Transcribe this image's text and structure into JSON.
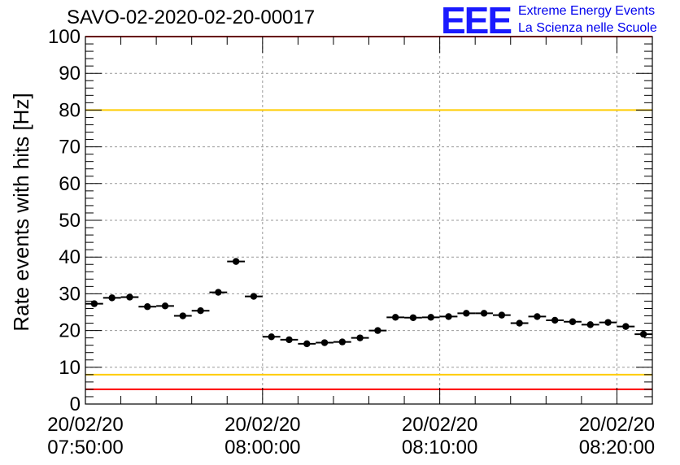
{
  "title": "SAVO-02-2020-02-20-00017",
  "logo": {
    "mark": "EEE",
    "line1": "Extreme Energy Events",
    "line2": "La Scienza nelle Scuole"
  },
  "chart_data": {
    "type": "scatter",
    "ylabel": "Rate events with hits [Hz]",
    "xlabel": "",
    "ylim": [
      0,
      100
    ],
    "xlim": [
      "07:50:00",
      "08:22:00"
    ],
    "yticks": [
      0,
      10,
      20,
      30,
      40,
      50,
      60,
      70,
      80,
      90,
      100
    ],
    "xtick_labels": [
      {
        "date": "20/02/20",
        "time": "07:50:00"
      },
      {
        "date": "20/02/20",
        "time": "08:00:00"
      },
      {
        "date": "20/02/20",
        "time": "08:10:00"
      },
      {
        "date": "20/02/20",
        "time": "08:20:00"
      }
    ],
    "grid": true,
    "bin_width_min": 1,
    "x_minutes_after_0750": [
      0.5,
      1.5,
      2.5,
      3.5,
      4.5,
      5.5,
      6.5,
      7.5,
      8.5,
      9.5,
      10.5,
      11.5,
      12.5,
      13.5,
      14.5,
      15.5,
      16.5,
      17.5,
      18.5,
      19.5,
      20.5,
      21.5,
      22.5,
      23.5,
      24.5,
      25.5,
      26.5,
      27.5,
      28.5,
      29.5,
      30.5,
      31.5
    ],
    "values": [
      27.3,
      28.9,
      29.1,
      26.5,
      26.7,
      24.0,
      25.4,
      30.4,
      38.8,
      29.3,
      18.3,
      17.5,
      16.4,
      16.7,
      16.9,
      18.0,
      20.0,
      23.6,
      23.5,
      23.6,
      23.8,
      24.7,
      24.7,
      24.2,
      22.0,
      23.8,
      22.8,
      22.4,
      21.6,
      22.2,
      21.1,
      19.0
    ],
    "reference_lines": [
      {
        "value": 100,
        "color": "#ff0000"
      },
      {
        "value": 80,
        "color": "#ffcc00"
      },
      {
        "value": 8,
        "color": "#ffcc00"
      },
      {
        "value": 4,
        "color": "#ff0000"
      }
    ]
  }
}
